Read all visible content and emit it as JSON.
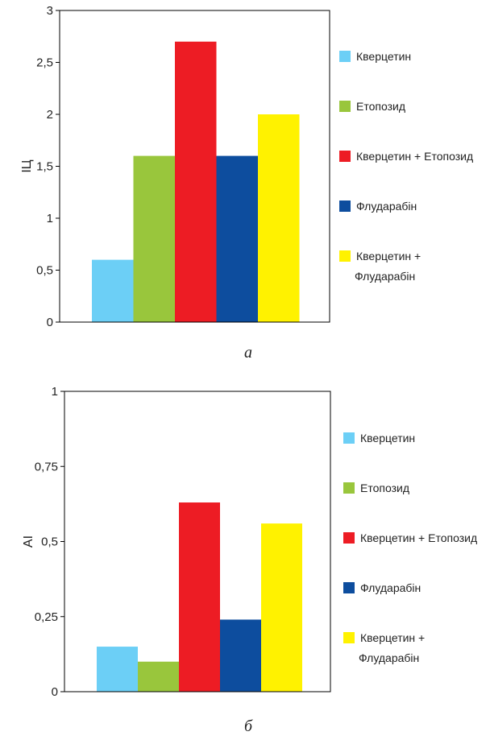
{
  "colors": {
    "quercetin": "#6ccff6",
    "etoposide": "#99c63c",
    "quercetin_etoposide": "#ed1c24",
    "fludarabine": "#0d4d9e",
    "quercetin_fludarabine": "#fff200"
  },
  "chart_data": [
    {
      "type": "bar",
      "caption": "а",
      "ylabel": "ІЦ",
      "ylim": [
        0,
        3
      ],
      "yticks": [
        0,
        0.5,
        1,
        1.5,
        2,
        2.5,
        3
      ],
      "ytick_labels": [
        "0",
        "0,5",
        "1",
        "1,5",
        "2",
        "2,5",
        "3"
      ],
      "grid": false,
      "legend_position": "right",
      "series": [
        {
          "name": "Кверцетин",
          "value": 0.6,
          "color": "#6ccff6"
        },
        {
          "name": "Етопозид",
          "value": 1.6,
          "color": "#99c63c"
        },
        {
          "name": "Кверцетин + Етопозид",
          "value": 2.7,
          "color": "#ed1c24"
        },
        {
          "name": "Флударабін",
          "value": 1.6,
          "color": "#0d4d9e"
        },
        {
          "name": "Кверцетин + Флударабін",
          "value": 2.0,
          "color": "#fff200"
        }
      ]
    },
    {
      "type": "bar",
      "caption": "б",
      "ylabel": "AI",
      "ylim": [
        0,
        1
      ],
      "yticks": [
        0,
        0.25,
        0.5,
        0.75,
        1
      ],
      "ytick_labels": [
        "0",
        "0,25",
        "0,5",
        "0,75",
        "1"
      ],
      "grid": false,
      "legend_position": "right",
      "series": [
        {
          "name": "Кверцетин",
          "value": 0.15,
          "color": "#6ccff6"
        },
        {
          "name": "Етопозид",
          "value": 0.1,
          "color": "#99c63c"
        },
        {
          "name": "Кверцетин + Етопозид",
          "value": 0.63,
          "color": "#ed1c24"
        },
        {
          "name": "Флударабін",
          "value": 0.24,
          "color": "#0d4d9e"
        },
        {
          "name": "Кверцетин + Флударабін",
          "value": 0.56,
          "color": "#fff200"
        }
      ]
    }
  ]
}
